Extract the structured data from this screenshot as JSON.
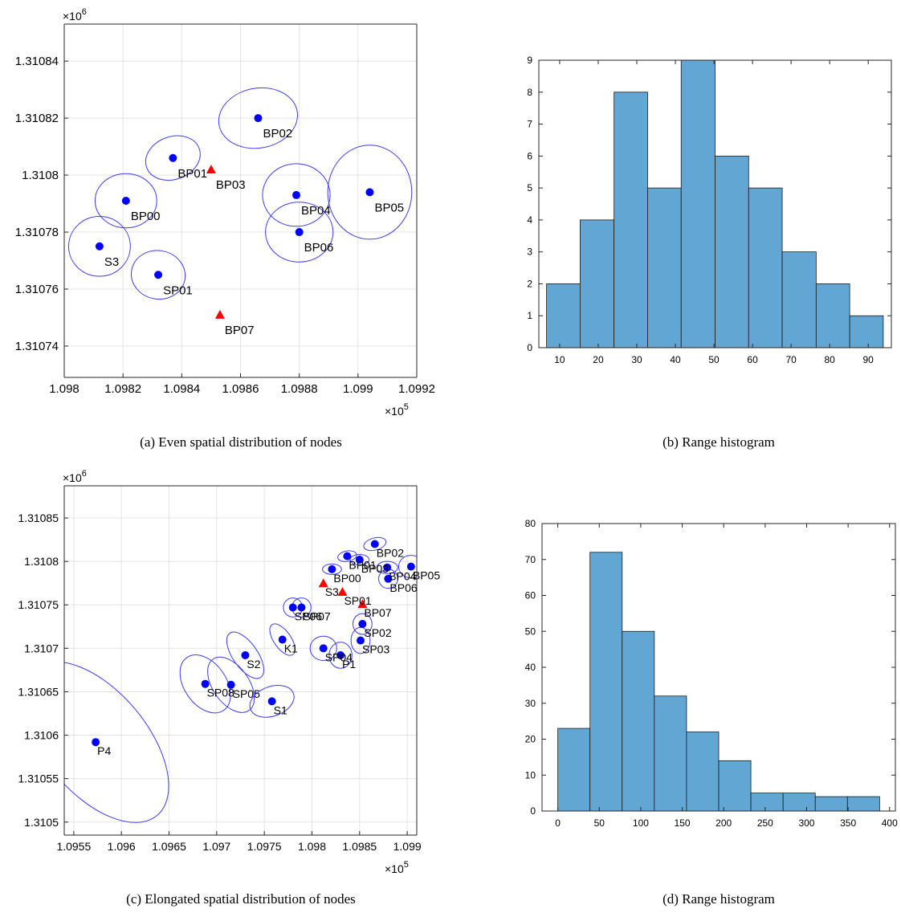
{
  "chart_data": [
    {
      "type": "scatter",
      "caption": "(a) Even spatial distribution of nodes",
      "x_exponent_label": "×10^5",
      "y_exponent_label": "×10^6",
      "xlim": [
        1.098,
        1.0992
      ],
      "ylim": [
        1.310729,
        1.310853
      ],
      "x_ticks": [
        1.098,
        1.0982,
        1.0984,
        1.0986,
        1.0988,
        1.099,
        1.0992
      ],
      "x_tick_labels": [
        "1.098",
        "1.0982",
        "1.0984",
        "1.0986",
        "1.0988",
        "1.099",
        "1.0992"
      ],
      "y_ticks": [
        1.31074,
        1.31076,
        1.31078,
        1.3108,
        1.31082,
        1.31084
      ],
      "y_tick_labels": [
        "1.31074",
        "1.31076",
        "1.31078",
        "1.3108",
        "1.31082",
        "1.31084"
      ],
      "grid": true,
      "nodes": [
        {
          "label": "BP01",
          "x": 1.09837,
          "y": 1.310806,
          "marker": "circle",
          "ellipse": {
            "rx": 9.5e-05,
            "ry": 7.5e-06,
            "angle": 20
          }
        },
        {
          "label": "BP02",
          "x": 1.09866,
          "y": 1.31082,
          "marker": "circle",
          "ellipse": {
            "rx": 0.000135,
            "ry": 1.05e-05,
            "angle": 10
          }
        },
        {
          "label": "BP00",
          "x": 1.09821,
          "y": 1.310791,
          "marker": "circle",
          "ellipse": {
            "rx": 0.000105,
            "ry": 9.5e-06,
            "angle": 0
          }
        },
        {
          "label": "S3",
          "x": 1.09812,
          "y": 1.310775,
          "marker": "circle",
          "ellipse": {
            "rx": 0.000105,
            "ry": 1.05e-05,
            "angle": 0
          }
        },
        {
          "label": "SP01",
          "x": 1.09832,
          "y": 1.310765,
          "marker": "circle",
          "ellipse": {
            "rx": 9.2e-05,
            "ry": 8.5e-06,
            "angle": -10
          }
        },
        {
          "label": "BP04",
          "x": 1.09879,
          "y": 1.310793,
          "marker": "circle",
          "ellipse": {
            "rx": 0.000115,
            "ry": 1.1e-05,
            "angle": 0
          }
        },
        {
          "label": "BP05",
          "x": 1.09904,
          "y": 1.310794,
          "marker": "circle",
          "ellipse": {
            "rx": 0.000143,
            "ry": 1.65e-05,
            "angle": 0
          }
        },
        {
          "label": "BP06",
          "x": 1.0988,
          "y": 1.31078,
          "marker": "circle",
          "ellipse": {
            "rx": 0.000115,
            "ry": 1.05e-05,
            "angle": 0
          }
        },
        {
          "label": "BP03",
          "x": 1.0985,
          "y": 1.310802,
          "marker": "triangle"
        },
        {
          "label": "BP07",
          "x": 1.09853,
          "y": 1.310751,
          "marker": "triangle"
        }
      ]
    },
    {
      "type": "bar",
      "caption": "(b) Range histogram",
      "histogram": true,
      "bin_edges": [
        6.6,
        15.3,
        24.1,
        32.8,
        41.5,
        50.3,
        59.0,
        67.7,
        76.5,
        85.2,
        93.9
      ],
      "values": [
        2,
        4,
        8,
        5,
        9,
        6,
        5,
        3,
        2,
        1
      ],
      "xlim": [
        4.6,
        96
      ],
      "ylim": [
        0,
        9
      ],
      "x_ticks": [
        10,
        20,
        30,
        40,
        50,
        60,
        70,
        80,
        90
      ],
      "y_ticks": [
        0,
        1,
        2,
        3,
        4,
        5,
        6,
        7,
        8,
        9
      ],
      "bar_color": "#62a7d4"
    },
    {
      "type": "scatter",
      "caption": "(c) Elongated spatial distribution of nodes",
      "x_exponent_label": "×10^5",
      "y_exponent_label": "×10^6",
      "xlim": [
        1.0954,
        1.0991
      ],
      "ylim": [
        1.310485,
        1.310887
      ],
      "x_ticks": [
        1.0955,
        1.096,
        1.0965,
        1.097,
        1.0975,
        1.098,
        1.0985,
        1.099
      ],
      "x_tick_labels": [
        "1.0955",
        "1.096",
        "1.0965",
        "1.097",
        "1.0975",
        "1.098",
        "1.0985",
        "1.099"
      ],
      "y_ticks": [
        1.3105,
        1.31055,
        1.3106,
        1.31065,
        1.3107,
        1.31075,
        1.3108,
        1.31085
      ],
      "y_tick_labels": [
        "1.3105",
        "1.31055",
        "1.3106",
        "1.31065",
        "1.3107",
        "1.31075",
        "1.3108",
        "1.31085"
      ],
      "grid": true,
      "nodes": [
        {
          "label": "BP02",
          "x": 1.09866,
          "y": 1.31082,
          "marker": "circle",
          "ellipse": {
            "rx": 0.00012,
            "ry": 7e-06,
            "angle": 15
          }
        },
        {
          "label": "BP01",
          "x": 1.09837,
          "y": 1.310806,
          "marker": "circle",
          "ellipse": {
            "rx": 0.0001,
            "ry": 6e-06,
            "angle": 10
          }
        },
        {
          "label": "BP03",
          "x": 1.0985,
          "y": 1.310802,
          "marker": "circle",
          "ellipse": {
            "rx": 0.0001,
            "ry": 6e-06,
            "angle": 0
          }
        },
        {
          "label": "BP00",
          "x": 1.09821,
          "y": 1.310791,
          "marker": "circle",
          "ellipse": {
            "rx": 0.0001,
            "ry": 6e-06,
            "angle": 0
          }
        },
        {
          "label": "BP04",
          "x": 1.09879,
          "y": 1.310793,
          "marker": "circle",
          "ellipse": {
            "rx": 0.00011,
            "ry": 7e-06,
            "angle": 0
          }
        },
        {
          "label": "BP05",
          "x": 1.09904,
          "y": 1.310794,
          "marker": "circle",
          "ellipse": {
            "rx": 0.00013,
            "ry": 1.3e-05,
            "angle": 0
          }
        },
        {
          "label": "BP06",
          "x": 1.0988,
          "y": 1.31078,
          "marker": "circle",
          "ellipse": {
            "rx": 0.0001,
            "ry": 1.1e-05,
            "angle": 0
          }
        },
        {
          "label": "S3",
          "x": 1.09812,
          "y": 1.310775,
          "marker": "triangle"
        },
        {
          "label": "SP01",
          "x": 1.09832,
          "y": 1.310765,
          "marker": "triangle"
        },
        {
          "label": "BP07",
          "x": 1.09853,
          "y": 1.310751,
          "marker": "triangle"
        },
        {
          "label": "SP06",
          "x": 1.0978,
          "y": 1.310747,
          "marker": "circle",
          "ellipse": {
            "rx": 0.0001,
            "ry": 1.1e-05,
            "angle": 0
          }
        },
        {
          "label": "SP07",
          "x": 1.09789,
          "y": 1.310747,
          "marker": "circle",
          "ellipse": {
            "rx": 0.0001,
            "ry": 1.1e-05,
            "angle": 0
          }
        },
        {
          "label": "SP02",
          "x": 1.09853,
          "y": 1.310728,
          "marker": "circle",
          "ellipse": {
            "rx": 0.0001,
            "ry": 1.2e-05,
            "angle": 0
          }
        },
        {
          "label": "SP03",
          "x": 1.09851,
          "y": 1.310709,
          "marker": "circle",
          "ellipse": {
            "rx": 0.0001,
            "ry": 1.5e-05,
            "angle": 0
          }
        },
        {
          "label": "K1",
          "x": 1.09769,
          "y": 1.31071,
          "marker": "circle",
          "ellipse": {
            "rx": 9e-05,
            "ry": 2.1e-05,
            "angle": 35
          }
        },
        {
          "label": "SP04",
          "x": 1.09812,
          "y": 1.3107,
          "marker": "circle",
          "ellipse": {
            "rx": 0.00014,
            "ry": 1.4e-05,
            "angle": 0
          }
        },
        {
          "label": "P1",
          "x": 1.0983,
          "y": 1.310692,
          "marker": "circle",
          "ellipse": {
            "rx": 0.00012,
            "ry": 1.5e-05,
            "angle": 0
          }
        },
        {
          "label": "S2",
          "x": 1.0973,
          "y": 1.310692,
          "marker": "circle",
          "ellipse": {
            "rx": 0.00013,
            "ry": 3.1e-05,
            "angle": 35
          }
        },
        {
          "label": "SP08",
          "x": 1.09688,
          "y": 1.310659,
          "marker": "circle",
          "ellipse": {
            "rx": 0.00022,
            "ry": 3.7e-05,
            "angle": 35
          }
        },
        {
          "label": "SP05",
          "x": 1.09715,
          "y": 1.310658,
          "marker": "circle",
          "ellipse": {
            "rx": 0.00019,
            "ry": 3.6e-05,
            "angle": 35
          }
        },
        {
          "label": "S1",
          "x": 1.09758,
          "y": 1.310639,
          "marker": "circle",
          "ellipse": {
            "rx": 0.00024,
            "ry": 1.7e-05,
            "angle": 20
          }
        },
        {
          "label": "P4",
          "x": 1.09573,
          "y": 1.310592,
          "marker": "circle",
          "ellipse": {
            "rx": 0.00054,
            "ry": 0.00011,
            "angle": 40
          }
        }
      ]
    },
    {
      "type": "bar",
      "caption": "(d) Range histogram",
      "histogram": true,
      "bin_edges": [
        0,
        38.8,
        77.6,
        116.4,
        155.2,
        194,
        232.8,
        271.6,
        310.4,
        349.2,
        388
      ],
      "values": [
        23,
        72,
        50,
        32,
        22,
        14,
        5,
        5,
        4,
        4
      ],
      "xlim": [
        -19,
        407
      ],
      "ylim": [
        0,
        80
      ],
      "x_ticks": [
        0,
        50,
        100,
        150,
        200,
        250,
        300,
        350,
        400
      ],
      "y_ticks": [
        0,
        10,
        20,
        30,
        40,
        50,
        60,
        70,
        80
      ],
      "bar_color": "#62a7d4"
    }
  ],
  "colors": {
    "node_fill": "#0000ff",
    "ellipse_stroke": "#3b3bff",
    "anchor_fill": "#ff0000",
    "grid": "#e3e3e3",
    "bar_fill": "#62a7d4"
  }
}
